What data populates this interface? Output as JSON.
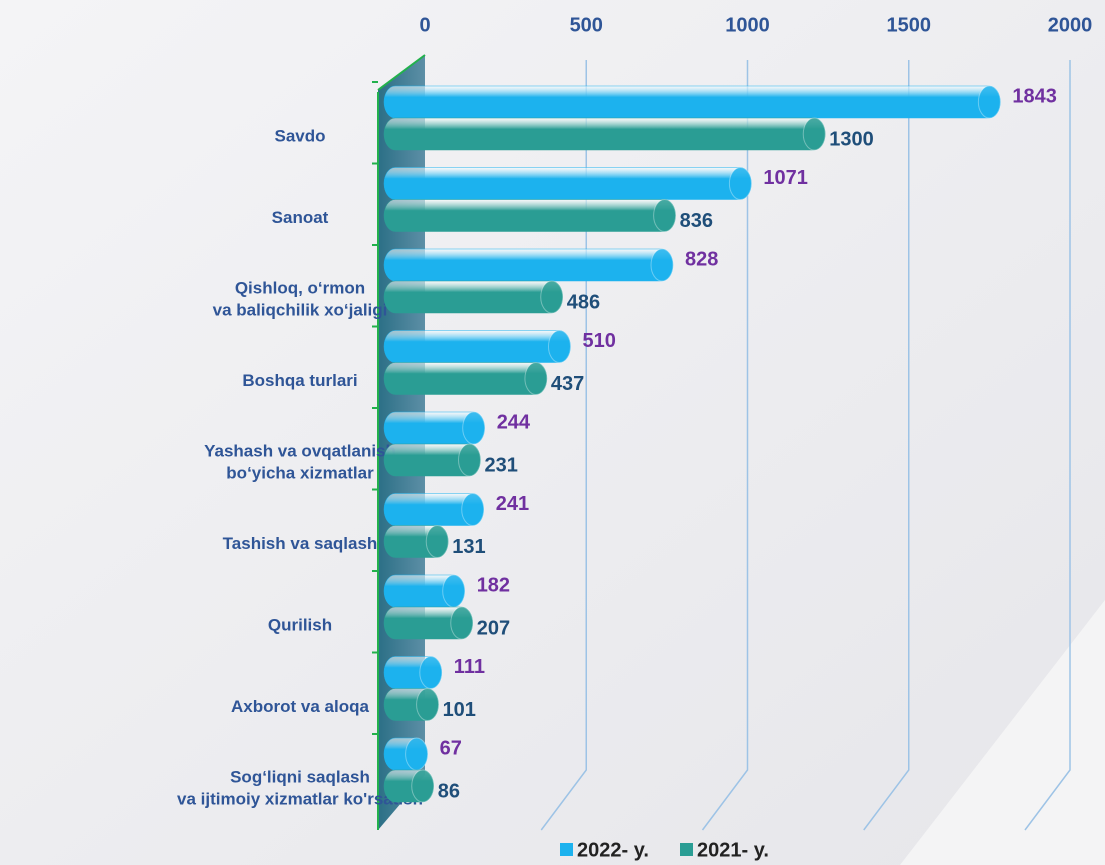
{
  "chart_data": {
    "type": "bar",
    "orientation": "horizontal",
    "categories": [
      [
        "Savdo"
      ],
      [
        "Sanoat"
      ],
      [
        "Qishloq, o‘rmon",
        "va baliqchilik xo‘jaligi"
      ],
      [
        "Boshqa turlari"
      ],
      [
        "Yashash va ovqatlanish",
        "bo‘yicha xizmatlar"
      ],
      [
        "Tashish va saqlash"
      ],
      [
        "Qurilish"
      ],
      [
        "Axborot va aloqa"
      ],
      [
        "Sog‘liqni saqlash",
        "va ijtimoiy xizmatlar ko'rsatish"
      ]
    ],
    "series": [
      {
        "name": "2022- y.",
        "color": "#1cb2ee",
        "label_color": "#7030a0",
        "values": [
          1843,
          1071,
          828,
          510,
          244,
          241,
          182,
          111,
          67
        ]
      },
      {
        "name": "2021- y.",
        "color": "#2a9d94",
        "label_color": "#1f4e79",
        "values": [
          1300,
          836,
          486,
          437,
          231,
          131,
          207,
          101,
          86
        ]
      }
    ],
    "xlim": [
      0,
      2000
    ],
    "xticks": [
      0,
      500,
      1000,
      1500,
      2000
    ],
    "grid": true,
    "legend": "bottom"
  }
}
